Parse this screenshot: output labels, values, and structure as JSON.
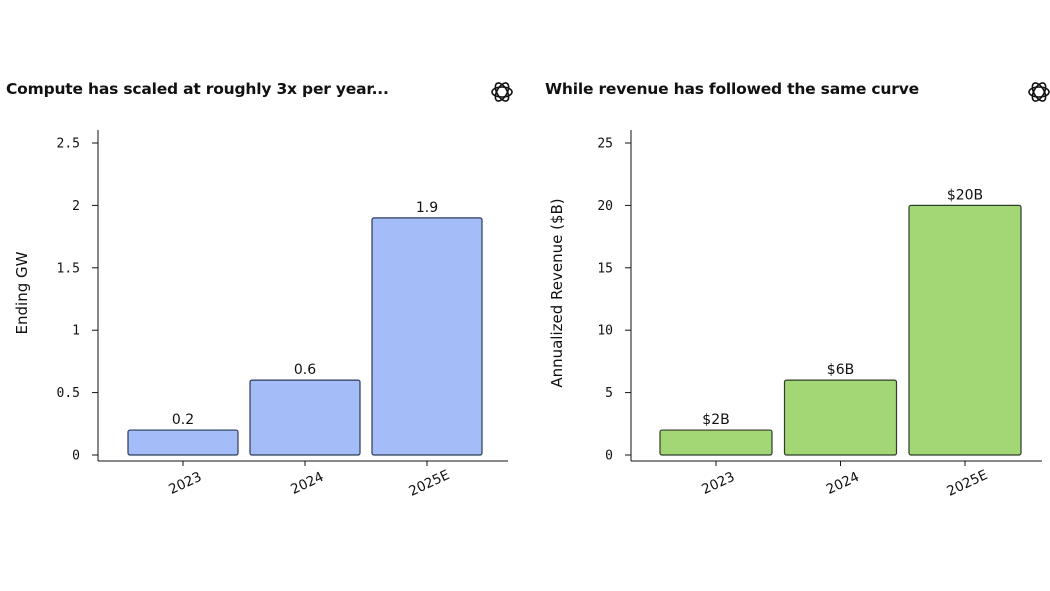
{
  "chart_data": [
    {
      "type": "bar",
      "title": "Compute has scaled at roughly 3x per year...",
      "xlabel": "",
      "ylabel": "Ending GW",
      "categories": [
        "2023",
        "2024",
        "2025E"
      ],
      "values": [
        0.2,
        0.6,
        1.9
      ],
      "value_labels": [
        "0.2",
        "0.6",
        "1.9"
      ],
      "ylim": [
        0,
        2.5
      ],
      "yticks": [
        0,
        0.5,
        1,
        1.5,
        2,
        2.5
      ],
      "ytick_labels": [
        "0",
        "0.5",
        "1",
        "1.5",
        "2",
        "2.5"
      ],
      "bar_color": "#a4bdf8",
      "bar_edge_color": "#2b3a55",
      "grid": false,
      "legend": "none",
      "logo_icon": "openai-logo-icon"
    },
    {
      "type": "bar",
      "title": "While revenue has followed the same curve",
      "xlabel": "",
      "ylabel": "Annualized Revenue ($B)",
      "categories": [
        "2023",
        "2024",
        "2025E"
      ],
      "values": [
        2,
        6,
        20
      ],
      "value_labels": [
        "$2B",
        "$6B",
        "$20B"
      ],
      "ylim": [
        0,
        25
      ],
      "yticks": [
        0,
        5,
        10,
        15,
        20,
        25
      ],
      "ytick_labels": [
        "0",
        "5",
        "10",
        "15",
        "20",
        "25"
      ],
      "bar_color": "#a3d775",
      "bar_edge_color": "#2f3d2a",
      "grid": false,
      "legend": "none",
      "logo_icon": "openai-logo-icon"
    }
  ]
}
